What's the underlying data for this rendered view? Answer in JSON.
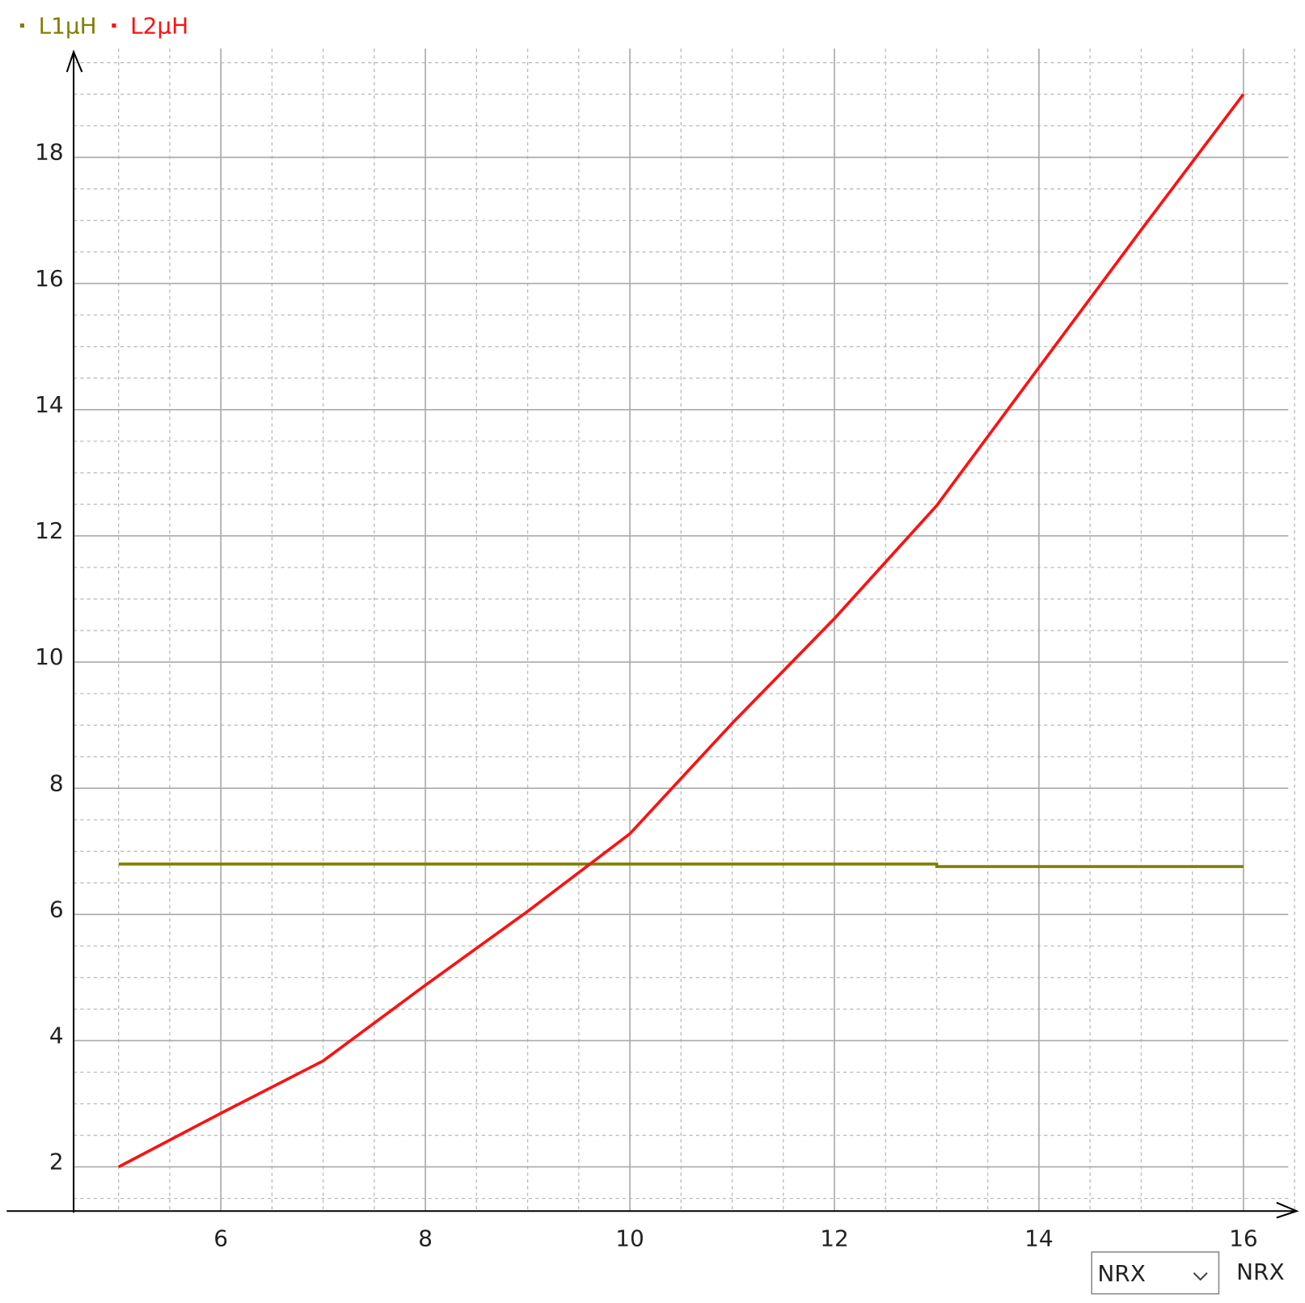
{
  "chart_data": {
    "type": "line",
    "series": [
      {
        "name": "L1µH",
        "color": "#7f7f00",
        "x": [
          5,
          13,
          13,
          16
        ],
        "values": [
          6.8,
          6.8,
          6.76,
          6.76
        ]
      },
      {
        "name": "L2µH",
        "color": "#ff1010",
        "x": [
          5,
          6,
          7,
          8,
          9,
          10,
          11,
          12,
          13,
          14,
          15,
          16
        ],
        "values": [
          2.0,
          2.85,
          3.68,
          4.88,
          6.05,
          7.28,
          9.03,
          10.69,
          12.48,
          14.67,
          16.85,
          19.0
        ]
      }
    ],
    "xlim": [
      4.56,
      16.52
    ],
    "ylim": [
      1.3,
      19.67
    ],
    "xticks": [
      6,
      8,
      10,
      12,
      14,
      16
    ],
    "yticks": [
      2,
      4,
      6,
      8,
      10,
      12,
      14,
      16,
      18
    ],
    "grid": true,
    "minor_grid_step": 0.5,
    "x_label": "NRX",
    "x_selector": "NRX",
    "legend": "top-left"
  }
}
